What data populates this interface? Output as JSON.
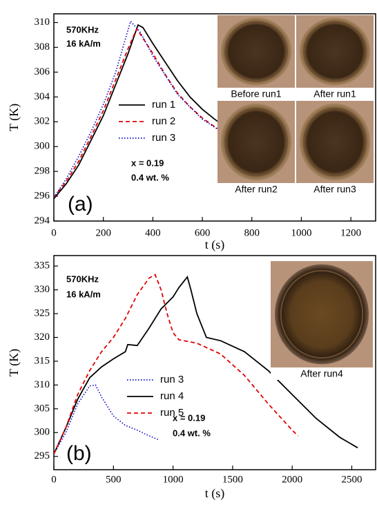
{
  "chart_data": [
    {
      "type": "line",
      "xlabel": "t (s)",
      "ylabel": "T (K)",
      "xlim": [
        0,
        1300
      ],
      "ylim": [
        294,
        310.7
      ],
      "xticks": [
        0,
        200,
        400,
        600,
        800,
        1000,
        1200
      ],
      "yticks": [
        294,
        296,
        298,
        300,
        302,
        304,
        306,
        308,
        310
      ],
      "series": [
        {
          "name": "run 1",
          "color": "#000000",
          "style": "solid",
          "x": [
            0,
            50,
            100,
            150,
            200,
            250,
            300,
            340,
            360,
            400,
            450,
            500,
            550,
            600,
            650,
            700,
            800,
            900,
            950
          ],
          "values": [
            295.8,
            297,
            298.5,
            300.5,
            302.5,
            305,
            307.5,
            309.8,
            309.6,
            308.3,
            306.8,
            305.3,
            304,
            303,
            302.2,
            301.5,
            300.3,
            299.2,
            298.7
          ]
        },
        {
          "name": "run 2",
          "color": "#e00000",
          "style": "dashed",
          "x": [
            0,
            50,
            100,
            150,
            200,
            250,
            300,
            335,
            400,
            450,
            500,
            550,
            600,
            650,
            700,
            800,
            900,
            950
          ],
          "values": [
            295.9,
            297.2,
            298.8,
            300.8,
            302.9,
            305.4,
            307.9,
            309.5,
            307.5,
            305.8,
            304.3,
            303.2,
            302.3,
            301.6,
            301,
            299.8,
            298.8,
            298.3
          ]
        },
        {
          "name": "run 3",
          "color": "#0000cc",
          "style": "dotted",
          "x": [
            0,
            50,
            100,
            150,
            200,
            250,
            310,
            350,
            400,
            500,
            600,
            700,
            800,
            900,
            950
          ],
          "values": [
            295.9,
            297.4,
            299.2,
            301.2,
            303.4,
            306,
            310.1,
            309.2,
            307.3,
            304.2,
            302.2,
            300.9,
            299.8,
            298.6,
            298.1
          ]
        }
      ],
      "annotations": [
        "570KHz",
        "16 kA/m",
        "x = 0.19",
        "0.4 wt. %",
        "(a)"
      ],
      "insets": [
        "Before run1",
        "After run1",
        "After run2",
        "After run3"
      ]
    },
    {
      "type": "line",
      "xlabel": "t (s)",
      "ylabel": "T (K)",
      "xlim": [
        0,
        2700
      ],
      "ylim": [
        292.2,
        337.2
      ],
      "xticks": [
        0,
        500,
        1000,
        1500,
        2000,
        2500
      ],
      "yticks": [
        295,
        300,
        305,
        310,
        315,
        320,
        325,
        330,
        335
      ],
      "series": [
        {
          "name": "run 3",
          "color": "#0000cc",
          "style": "dotted",
          "x": [
            0,
            100,
            200,
            300,
            350,
            400,
            500,
            600,
            700,
            800,
            880
          ],
          "values": [
            295.5,
            300,
            306,
            309.8,
            310,
            307.5,
            303.5,
            301.5,
            300.5,
            299.3,
            298.5
          ]
        },
        {
          "name": "run 4",
          "color": "#000000",
          "style": "solid",
          "x": [
            0,
            100,
            200,
            300,
            400,
            500,
            600,
            620,
            700,
            800,
            900,
            1000,
            1050,
            1120,
            1150,
            1200,
            1280,
            1400,
            1600,
            1800,
            2000,
            2200,
            2400,
            2550
          ],
          "values": [
            295.5,
            301,
            307,
            311.5,
            313.8,
            315.5,
            317,
            318.5,
            318.3,
            322,
            326,
            328.5,
            330.5,
            332.7,
            330,
            325,
            320,
            319.3,
            317,
            313,
            308,
            303,
            299,
            296.8
          ]
        },
        {
          "name": "run 5",
          "color": "#e00000",
          "style": "dashed",
          "x": [
            0,
            100,
            200,
            300,
            400,
            500,
            600,
            700,
            800,
            850,
            900,
            950,
            1000,
            1050,
            1200,
            1400,
            1600,
            1800,
            2000,
            2050
          ],
          "values": [
            295.5,
            301,
            308,
            313,
            317,
            320,
            324,
            329,
            332.5,
            333.2,
            330,
            325,
            321,
            319.5,
            318.8,
            316.5,
            312,
            306,
            300.5,
            299.3
          ]
        }
      ],
      "annotations": [
        "570KHz",
        "16 kA/m",
        "x = 0.19",
        "0.4 wt. %",
        "(b)"
      ],
      "insets": [
        "After run4"
      ]
    }
  ]
}
